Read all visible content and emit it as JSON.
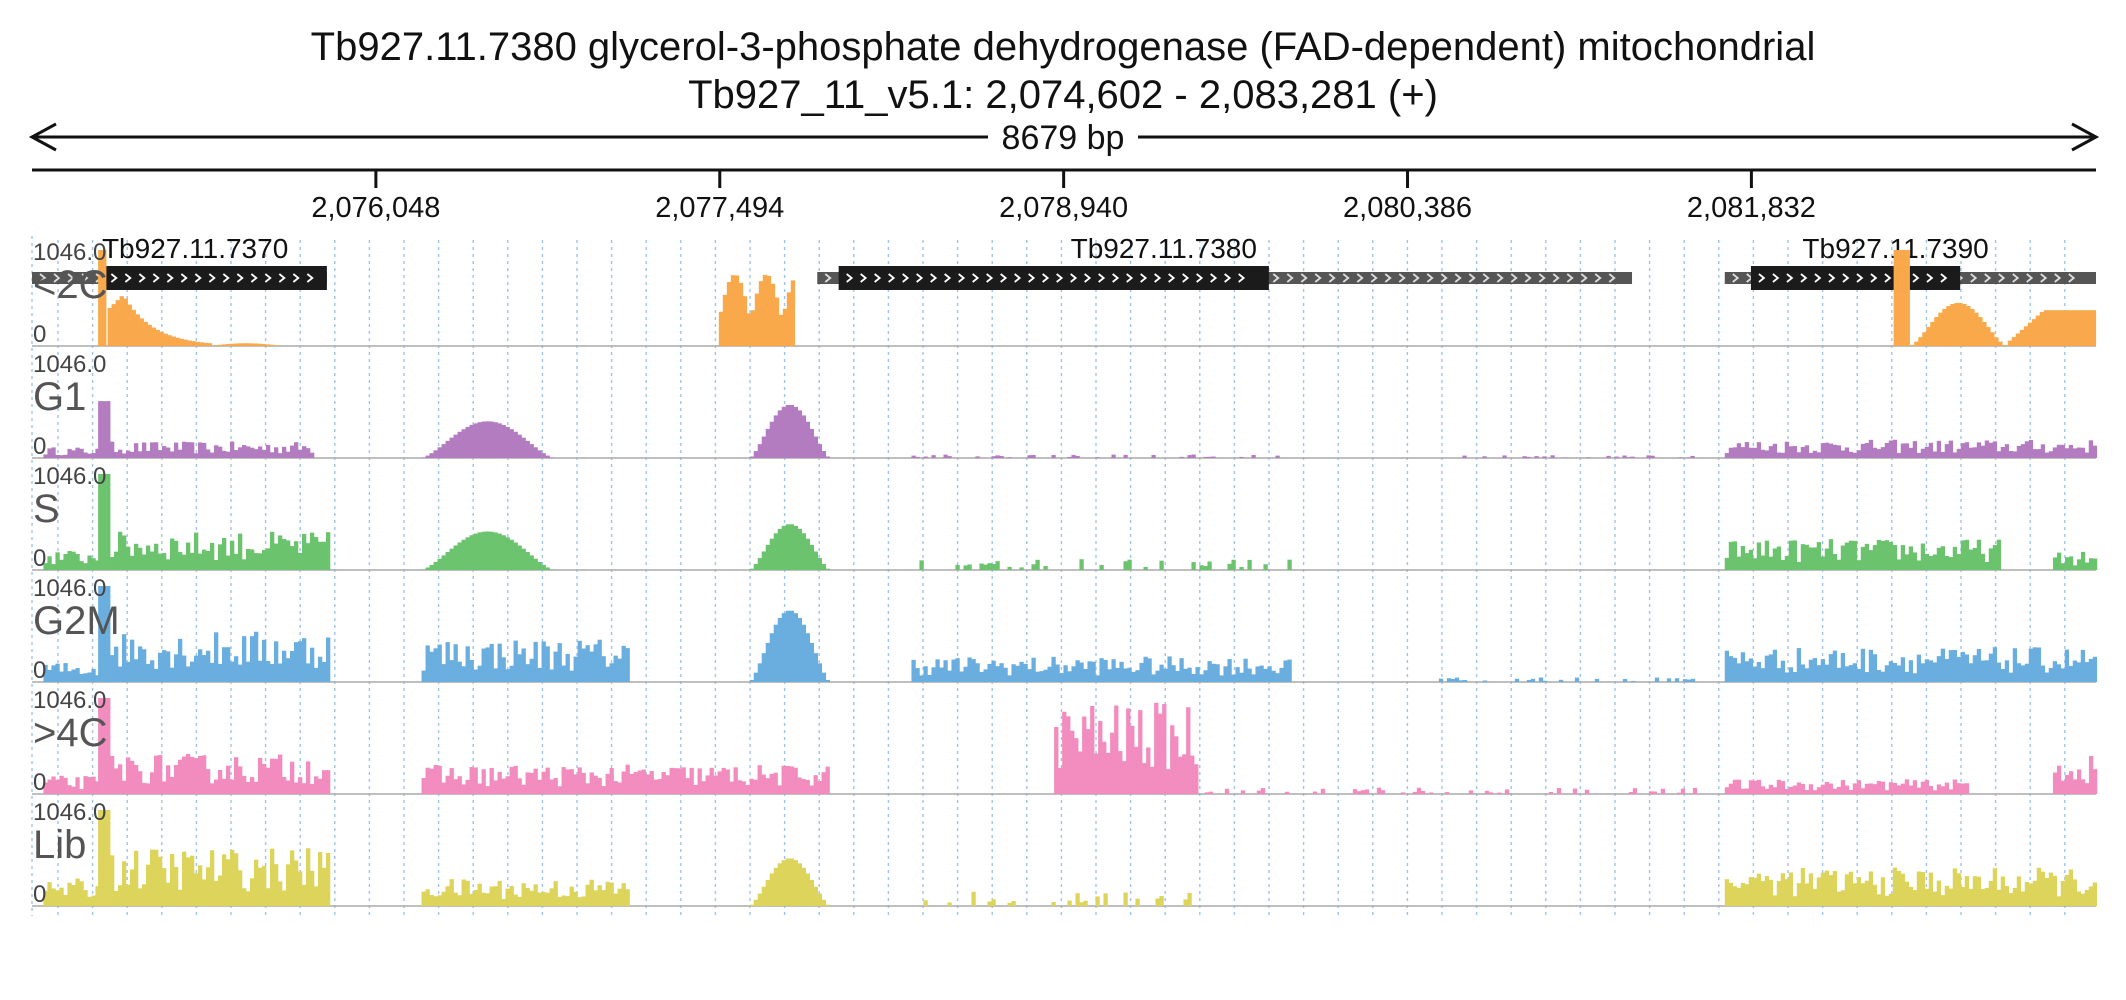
{
  "title": {
    "line1": "Tb927.11.7380  glycerol-3-phosphate dehydrogenase (FAD-dependent)  mitochondrial",
    "line2": "Tb927_11_v5.1: 2,074,602 - 2,083,281 (+)"
  },
  "span_label": "8679 bp",
  "chart_data": {
    "type": "area",
    "region": {
      "chrom": "Tb927_11_v5.1",
      "start": 2074602,
      "end": 2083281,
      "strand": "+"
    },
    "xticks": [
      {
        "value": 2076048,
        "label": "2,076,048"
      },
      {
        "value": 2077494,
        "label": "2,077,494"
      },
      {
        "value": 2078940,
        "label": "2,078,940"
      },
      {
        "value": 2080386,
        "label": "2,080,386"
      },
      {
        "value": 2081832,
        "label": "2,081,832"
      }
    ],
    "genes": [
      {
        "name": "Tb927.11.7370",
        "utr_start": 2074602,
        "cds_start": 2074902,
        "cds_end": 2075842,
        "utr_end": 2075842
      },
      {
        "name": "Tb927.11.7380",
        "utr_start": 2077904,
        "cds_start": 2077994,
        "cds_end": 2079803,
        "utr_end": 2081330
      },
      {
        "name": "Tb927.11.7390",
        "utr_start": 2081720,
        "cds_start": 2081830,
        "cds_end": 2082710,
        "utr_end": 2083281
      }
    ],
    "y_range": [
      0,
      1046.0
    ],
    "ymax_label": "1046.0",
    "ymin_label": "0",
    "series": [
      {
        "name": "<2C",
        "color": "#f9a94b",
        "segments": [
          {
            "start": 2074880,
            "end": 2074920,
            "peak": 1046,
            "shape": "flat"
          },
          {
            "start": 2074920,
            "end": 2075350,
            "peak": 560,
            "shape": "decay"
          },
          {
            "start": 2075350,
            "end": 2075650,
            "peak": 30,
            "shape": "bump"
          },
          {
            "start": 2077490,
            "end": 2077810,
            "peak": 780,
            "shape": "twin"
          },
          {
            "start": 2082430,
            "end": 2082500,
            "peak": 1046,
            "shape": "flat"
          },
          {
            "start": 2082500,
            "end": 2082910,
            "peak": 470,
            "shape": "hump"
          },
          {
            "start": 2082910,
            "end": 2083281,
            "peak": 390,
            "shape": "rise"
          }
        ]
      },
      {
        "name": "G1",
        "color": "#b47cc0",
        "segments": [
          {
            "start": 2074650,
            "end": 2074880,
            "peak": 120,
            "shape": "noisy"
          },
          {
            "start": 2074880,
            "end": 2074930,
            "peak": 620,
            "shape": "flat"
          },
          {
            "start": 2074930,
            "end": 2075780,
            "peak": 180,
            "shape": "noisy"
          },
          {
            "start": 2076240,
            "end": 2076790,
            "peak": 400,
            "shape": "hump"
          },
          {
            "start": 2077620,
            "end": 2077950,
            "peak": 580,
            "shape": "hump"
          },
          {
            "start": 2078300,
            "end": 2079900,
            "peak": 40,
            "shape": "sparse"
          },
          {
            "start": 2080600,
            "end": 2081600,
            "peak": 30,
            "shape": "sparse"
          },
          {
            "start": 2081720,
            "end": 2083281,
            "peak": 200,
            "shape": "noisy"
          }
        ]
      },
      {
        "name": "S",
        "color": "#6cc36e",
        "segments": [
          {
            "start": 2074650,
            "end": 2074880,
            "peak": 220,
            "shape": "noisy"
          },
          {
            "start": 2074880,
            "end": 2074930,
            "peak": 1046,
            "shape": "flat"
          },
          {
            "start": 2074930,
            "end": 2075850,
            "peak": 420,
            "shape": "noisy"
          },
          {
            "start": 2076240,
            "end": 2076790,
            "peak": 420,
            "shape": "hump"
          },
          {
            "start": 2077620,
            "end": 2077950,
            "peak": 500,
            "shape": "hump"
          },
          {
            "start": 2078300,
            "end": 2079900,
            "peak": 120,
            "shape": "sparse"
          },
          {
            "start": 2081720,
            "end": 2082880,
            "peak": 340,
            "shape": "noisy"
          },
          {
            "start": 2083100,
            "end": 2083281,
            "peak": 200,
            "shape": "noisy"
          }
        ]
      },
      {
        "name": "G2M",
        "color": "#6aaee0",
        "segments": [
          {
            "start": 2074650,
            "end": 2074880,
            "peak": 220,
            "shape": "noisy"
          },
          {
            "start": 2074880,
            "end": 2074930,
            "peak": 1046,
            "shape": "flat"
          },
          {
            "start": 2074930,
            "end": 2075850,
            "peak": 560,
            "shape": "noisy"
          },
          {
            "start": 2076240,
            "end": 2077120,
            "peak": 480,
            "shape": "noisy"
          },
          {
            "start": 2077620,
            "end": 2077950,
            "peak": 780,
            "shape": "hump"
          },
          {
            "start": 2078300,
            "end": 2079900,
            "peak": 280,
            "shape": "noisy"
          },
          {
            "start": 2080400,
            "end": 2081600,
            "peak": 50,
            "shape": "sparse"
          },
          {
            "start": 2081720,
            "end": 2083281,
            "peak": 380,
            "shape": "noisy"
          }
        ]
      },
      {
        "name": ">4C",
        "color": "#f28cbf",
        "segments": [
          {
            "start": 2074650,
            "end": 2074880,
            "peak": 200,
            "shape": "noisy"
          },
          {
            "start": 2074880,
            "end": 2074930,
            "peak": 1046,
            "shape": "flat"
          },
          {
            "start": 2074930,
            "end": 2075850,
            "peak": 440,
            "shape": "noisy"
          },
          {
            "start": 2076240,
            "end": 2077950,
            "peak": 320,
            "shape": "noisy"
          },
          {
            "start": 2078900,
            "end": 2079500,
            "peak": 1000,
            "shape": "noisy"
          },
          {
            "start": 2079500,
            "end": 2081600,
            "peak": 70,
            "shape": "sparse"
          },
          {
            "start": 2081720,
            "end": 2082750,
            "peak": 160,
            "shape": "noisy"
          },
          {
            "start": 2083100,
            "end": 2083281,
            "peak": 420,
            "shape": "noisy"
          }
        ]
      },
      {
        "name": "Lib",
        "color": "#ddd45c",
        "segments": [
          {
            "start": 2074650,
            "end": 2074880,
            "peak": 300,
            "shape": "noisy"
          },
          {
            "start": 2074880,
            "end": 2074930,
            "peak": 1046,
            "shape": "flat"
          },
          {
            "start": 2074930,
            "end": 2075850,
            "peak": 640,
            "shape": "noisy"
          },
          {
            "start": 2076240,
            "end": 2077120,
            "peak": 300,
            "shape": "noisy"
          },
          {
            "start": 2077620,
            "end": 2077950,
            "peak": 520,
            "shape": "hump"
          },
          {
            "start": 2078300,
            "end": 2079500,
            "peak": 160,
            "shape": "sparse"
          },
          {
            "start": 2081720,
            "end": 2083281,
            "peak": 420,
            "shape": "noisy"
          }
        ]
      }
    ]
  }
}
